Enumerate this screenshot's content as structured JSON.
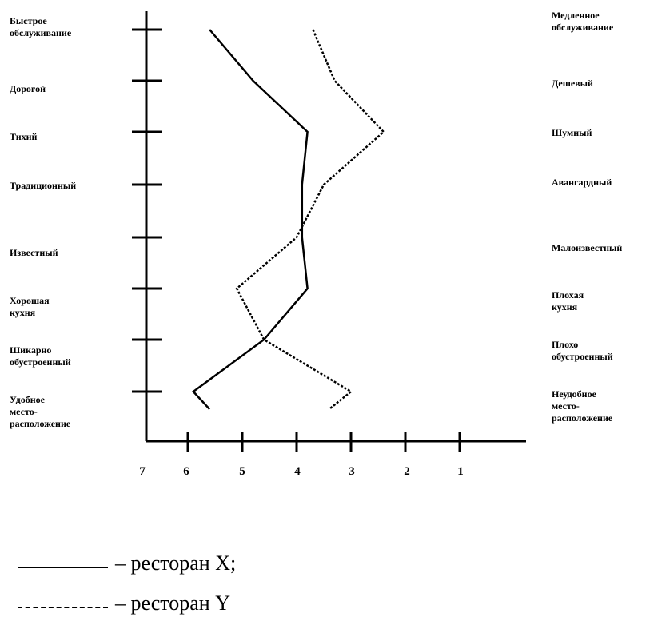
{
  "chart_data": {
    "type": "line",
    "orientation": "vertical-profile",
    "title": "",
    "x_axis": {
      "ticks": [
        "7",
        "6",
        "5",
        "4",
        "3",
        "2",
        "1"
      ],
      "reversed": true,
      "range": [
        7,
        1
      ]
    },
    "attributes_left": [
      "Быстрое обслуживание",
      "Дорогой",
      "Тихий",
      "Традиционный",
      "",
      "Известный",
      "Хорошая кухня",
      "Шикарно обустроенный",
      "Удобное место-расположение"
    ],
    "attributes_right": [
      "Медленное обслуживание",
      "Дешевый",
      "Шумный",
      "Авангардный",
      "",
      "Малоизвестный",
      "Плохая кухня",
      "Плохо обустроенный",
      "Неудобное место-расположение"
    ],
    "series": [
      {
        "name": "ресторан X",
        "style": "solid",
        "values": [
          5.6,
          4.8,
          3.8,
          3.9,
          3.9,
          3.8,
          4.6,
          5.9,
          5.6
        ]
      },
      {
        "name": "ресторан Y",
        "style": "dashed",
        "values": [
          3.7,
          3.3,
          2.4,
          3.5,
          4.0,
          5.1,
          4.6,
          3.0,
          3.4
        ]
      }
    ],
    "grid": false,
    "legend_placement": "bottom-left"
  },
  "legend": [
    {
      "label": "– ресторан X;"
    },
    {
      "label": "– ресторан Y"
    }
  ]
}
